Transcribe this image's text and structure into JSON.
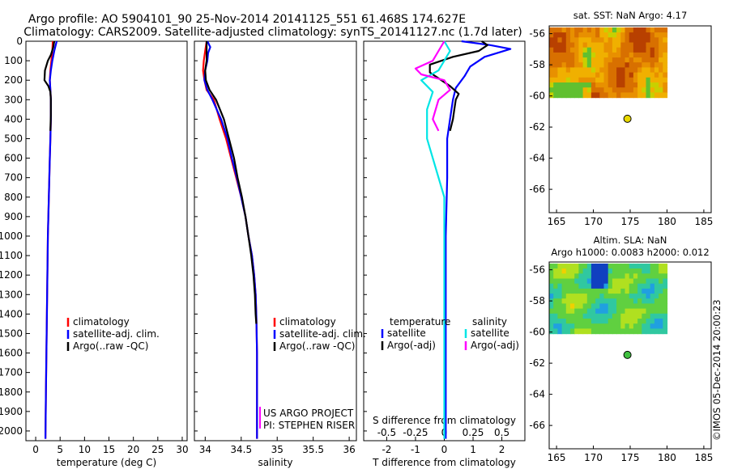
{
  "title": {
    "line1": "Argo profile: AO 5904101_90 25-Nov-2014 20141125_551 61.468S 174.627E",
    "line2": "Climatology: CARS2009. Satellite-adjusted climatology: synTS_20141127.nc (1.7d later)"
  },
  "footer": {
    "project": "US ARGO PROJECT",
    "pi": "PI: STEPHEN RISER",
    "timestamp": "©IMOS 05-Dec-2014 20:00:23"
  },
  "colors": {
    "climatology": "#ff0000",
    "satellite": "#0000ff",
    "argo": "#000000",
    "sal_satellite": "#00e5e5",
    "sal_argo": "#ff00ff",
    "marker_sst": "#e8d800",
    "marker_sla": "#40c040"
  },
  "chart_data": [
    {
      "id": "temperature",
      "type": "line",
      "xlabel": "temperature (deg C)",
      "xlim": [
        -2,
        31
      ],
      "xticks": [
        0,
        5,
        10,
        15,
        20,
        25,
        30
      ],
      "ylim": [
        0,
        2050
      ],
      "yticks": [
        0,
        100,
        200,
        300,
        400,
        500,
        600,
        700,
        800,
        900,
        1000,
        1100,
        1200,
        1300,
        1400,
        1500,
        1600,
        1700,
        1800,
        1900,
        2000
      ],
      "legend": [
        "climatology",
        "satellite-adj. clim.",
        "Argo(..raw -QC)"
      ],
      "series": [
        {
          "name": "climatology",
          "color": "#ff0000",
          "points": [
            [
              3.5,
              0
            ],
            [
              3.4,
              50
            ],
            [
              3.2,
              100
            ],
            [
              3.0,
              150
            ],
            [
              2.9,
              200
            ],
            [
              3.0,
              250
            ],
            [
              3.1,
              300
            ],
            [
              3.1,
              400
            ],
            [
              3.0,
              500
            ],
            [
              2.9,
              600
            ],
            [
              2.8,
              700
            ],
            [
              2.7,
              800
            ],
            [
              2.6,
              900
            ],
            [
              2.5,
              1000
            ],
            [
              2.4,
              1200
            ],
            [
              2.3,
              1400
            ],
            [
              2.2,
              1600
            ],
            [
              2.1,
              1800
            ],
            [
              2.0,
              2040
            ]
          ]
        },
        {
          "name": "satellite-adj. clim.",
          "color": "#0000ff",
          "points": [
            [
              4.3,
              0
            ],
            [
              3.8,
              50
            ],
            [
              3.4,
              100
            ],
            [
              3.1,
              150
            ],
            [
              2.9,
              200
            ],
            [
              3.0,
              250
            ],
            [
              3.1,
              300
            ],
            [
              3.1,
              400
            ],
            [
              3.0,
              500
            ],
            [
              2.9,
              600
            ],
            [
              2.8,
              700
            ],
            [
              2.7,
              800
            ],
            [
              2.6,
              900
            ],
            [
              2.5,
              1000
            ],
            [
              2.4,
              1200
            ],
            [
              2.3,
              1400
            ],
            [
              2.2,
              1600
            ],
            [
              2.1,
              1800
            ],
            [
              2.0,
              2040
            ]
          ]
        },
        {
          "name": "Argo(..raw -QC)",
          "color": "#000000",
          "points": [
            [
              3.8,
              0
            ],
            [
              3.6,
              30
            ],
            [
              3.1,
              70
            ],
            [
              2.5,
              100
            ],
            [
              1.9,
              150
            ],
            [
              1.8,
              200
            ],
            [
              2.6,
              230
            ],
            [
              3.0,
              260
            ],
            [
              3.1,
              300
            ],
            [
              3.1,
              380
            ],
            [
              3.0,
              460
            ]
          ]
        }
      ]
    },
    {
      "id": "salinity",
      "type": "line",
      "xlabel": "salinity",
      "xlim": [
        33.85,
        36.1
      ],
      "xticks": [
        34,
        34.5,
        35,
        35.5,
        36
      ],
      "ylim": [
        0,
        2050
      ],
      "legend": [
        "climatology",
        "satellite-adj. clim.",
        "Argo(..raw -QC)"
      ],
      "series": [
        {
          "name": "climatology",
          "color": "#ff0000",
          "points": [
            [
              34.02,
              0
            ],
            [
              34.0,
              50
            ],
            [
              33.98,
              100
            ],
            [
              33.97,
              150
            ],
            [
              33.99,
              200
            ],
            [
              34.02,
              250
            ],
            [
              34.12,
              300
            ],
            [
              34.2,
              400
            ],
            [
              34.29,
              500
            ],
            [
              34.36,
              600
            ],
            [
              34.43,
              700
            ],
            [
              34.5,
              800
            ],
            [
              34.56,
              900
            ],
            [
              34.6,
              1000
            ],
            [
              34.65,
              1100
            ],
            [
              34.68,
              1200
            ],
            [
              34.7,
              1300
            ],
            [
              34.71,
              1400
            ],
            [
              34.72,
              1600
            ],
            [
              34.72,
              1800
            ],
            [
              34.72,
              2040
            ]
          ]
        },
        {
          "name": "satellite-adj. clim.",
          "color": "#0000ff",
          "points": [
            [
              34.03,
              0
            ],
            [
              34.07,
              30
            ],
            [
              34.04,
              60
            ],
            [
              34.03,
              100
            ],
            [
              34.0,
              150
            ],
            [
              33.99,
              200
            ],
            [
              34.03,
              250
            ],
            [
              34.1,
              300
            ],
            [
              34.22,
              400
            ],
            [
              34.31,
              500
            ],
            [
              34.37,
              600
            ],
            [
              34.44,
              700
            ],
            [
              34.5,
              800
            ],
            [
              34.56,
              900
            ],
            [
              34.6,
              1000
            ],
            [
              34.65,
              1100
            ],
            [
              34.68,
              1200
            ],
            [
              34.7,
              1300
            ],
            [
              34.71,
              1400
            ],
            [
              34.72,
              1600
            ],
            [
              34.72,
              1800
            ],
            [
              34.72,
              2040
            ]
          ]
        },
        {
          "name": "Argo(..raw -QC)",
          "color": "#000000",
          "points": [
            [
              34.02,
              0
            ],
            [
              34.02,
              100
            ],
            [
              34.0,
              150
            ],
            [
              34.01,
              200
            ],
            [
              34.06,
              250
            ],
            [
              34.15,
              300
            ],
            [
              34.26,
              400
            ],
            [
              34.33,
              500
            ],
            [
              34.4,
              600
            ],
            [
              34.45,
              700
            ],
            [
              34.51,
              800
            ],
            [
              34.56,
              900
            ],
            [
              34.6,
              1000
            ],
            [
              34.64,
              1100
            ],
            [
              34.67,
              1200
            ],
            [
              34.69,
              1300
            ],
            [
              34.7,
              1400
            ],
            [
              34.71,
              1450
            ]
          ]
        }
      ],
      "footer_lines": [
        "US ARGO PROJECT",
        "PI: STEPHEN RISER"
      ]
    },
    {
      "id": "difference",
      "type": "line",
      "xlabel": "T difference from climatology",
      "xlabel_top": "S difference from climatology",
      "xlim": [
        -2.8,
        2.8
      ],
      "xticks": [
        -2,
        -1,
        0,
        1,
        2
      ],
      "x2ticks": [
        -0.5,
        -0.25,
        0,
        0.25,
        0.5
      ],
      "ylim": [
        0,
        2050
      ],
      "legend_temperature": [
        "temperature",
        "satellite",
        "Argo(-adj)"
      ],
      "legend_salinity": [
        "salinity",
        "satellite",
        "Argo(-adj)"
      ],
      "series": [
        {
          "name": "temperature satellite",
          "color": "#0000ff",
          "points": [
            [
              0.6,
              0
            ],
            [
              1.6,
              20
            ],
            [
              2.3,
              40
            ],
            [
              1.4,
              80
            ],
            [
              0.9,
              130
            ],
            [
              0.7,
              180
            ],
            [
              0.4,
              240
            ],
            [
              0.3,
              300
            ],
            [
              0.2,
              400
            ],
            [
              0.1,
              500
            ],
            [
              0.1,
              700
            ],
            [
              0.05,
              1000
            ],
            [
              0.05,
              1500
            ],
            [
              0.05,
              2040
            ]
          ]
        },
        {
          "name": "temperature Argo(-adj)",
          "color": "#000000",
          "points": [
            [
              1.3,
              0
            ],
            [
              1.5,
              20
            ],
            [
              1.2,
              50
            ],
            [
              0.3,
              80
            ],
            [
              -0.5,
              120
            ],
            [
              -0.5,
              160
            ],
            [
              -0.1,
              200
            ],
            [
              0.2,
              230
            ],
            [
              0.5,
              270
            ],
            [
              0.4,
              300
            ],
            [
              0.35,
              350
            ],
            [
              0.3,
              400
            ],
            [
              0.2,
              460
            ]
          ]
        },
        {
          "name": "salinity satellite",
          "color": "#00e5e5",
          "points": [
            [
              0.0,
              0
            ],
            [
              0.05,
              50
            ],
            [
              0.0,
              100
            ],
            [
              -0.05,
              150
            ],
            [
              -0.2,
              200
            ],
            [
              -0.1,
              260
            ],
            [
              -0.15,
              350
            ],
            [
              -0.15,
              500
            ],
            [
              -0.1,
              600
            ],
            [
              -0.05,
              700
            ],
            [
              0.0,
              800
            ],
            [
              0.0,
              1000
            ],
            [
              0.0,
              1500
            ],
            [
              0.0,
              2040
            ]
          ]
        },
        {
          "name": "salinity Argo(-adj)",
          "color": "#ff00ff",
          "points": [
            [
              0.0,
              0
            ],
            [
              -0.05,
              50
            ],
            [
              -0.1,
              100
            ],
            [
              -0.25,
              140
            ],
            [
              -0.2,
              170
            ],
            [
              0.0,
              200
            ],
            [
              0.05,
              250
            ],
            [
              -0.05,
              300
            ],
            [
              -0.1,
              400
            ],
            [
              -0.05,
              460
            ]
          ]
        }
      ]
    },
    {
      "id": "sst_map",
      "type": "heatmap",
      "title": "sat. SST: NaN  Argo: 4.17",
      "xlim": [
        164,
        186
      ],
      "xticks": [
        165,
        170,
        175,
        180,
        185
      ],
      "ylim": [
        -67.5,
        -55.5
      ],
      "yticks": [
        -56,
        -58,
        -60,
        -62,
        -64,
        -66
      ],
      "data_extent": {
        "lon": [
          164,
          180
        ],
        "lat": [
          -60.1,
          -55.6
        ]
      },
      "marker": {
        "lon": 174.627,
        "lat": -61.468
      }
    },
    {
      "id": "sla_map",
      "type": "heatmap",
      "title_line1": "Altim. SLA: NaN",
      "title_line2": "Argo h1000: 0.0083  h2000: 0.012",
      "xlim": [
        164,
        186
      ],
      "xticks": [
        165,
        170,
        175,
        180,
        185
      ],
      "ylim": [
        -67.5,
        -55.5
      ],
      "yticks": [
        -56,
        -58,
        -60,
        -62,
        -64,
        -66
      ],
      "data_extent": {
        "lon": [
          164,
          180
        ],
        "lat": [
          -60.1,
          -55.6
        ]
      },
      "marker": {
        "lon": 174.627,
        "lat": -61.468
      }
    }
  ]
}
